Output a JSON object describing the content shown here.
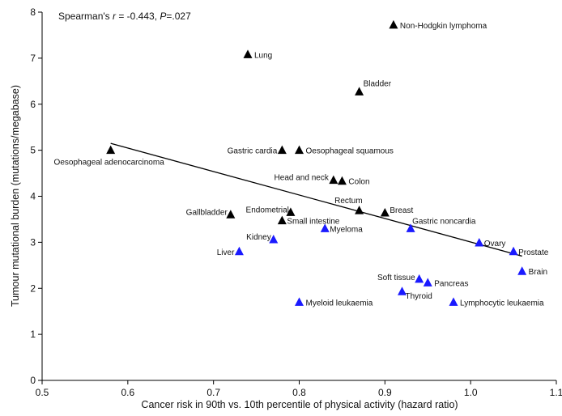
{
  "chart_data": {
    "type": "scatter",
    "title": "",
    "xlabel": "Cancer risk in 90th vs. 10th percentile of physical activity (hazard ratio)",
    "ylabel": "Tumour mutational burden (mutations/megabase)",
    "xlim": [
      0.5,
      1.1
    ],
    "ylim": [
      0,
      8
    ],
    "x_ticks": [
      "0.5",
      "0.6",
      "0.7",
      "0.8",
      "0.9",
      "1.0",
      "1.1"
    ],
    "y_ticks": [
      "0",
      "1",
      "2",
      "3",
      "4",
      "5",
      "6",
      "7",
      "8"
    ],
    "grid": false,
    "annotation": {
      "prefix": "Spearman's ",
      "r_symbol": "r",
      "r_value": " = -0.443, ",
      "p_symbol": "P",
      "p_value": "=.027"
    },
    "colors": {
      "black_series": "#000000",
      "blue_series": "#1a1aff",
      "trend_line": "#000000"
    },
    "trend_line": {
      "x": [
        0.58,
        1.06
      ],
      "y": [
        5.15,
        2.7
      ]
    },
    "points": [
      {
        "label": "Non-Hodgkin lymphoma",
        "x": 0.91,
        "y": 7.72,
        "color": "black"
      },
      {
        "label": "Lung",
        "x": 0.74,
        "y": 7.08,
        "color": "black"
      },
      {
        "label": "Bladder",
        "x": 0.87,
        "y": 6.27,
        "color": "black"
      },
      {
        "label": "Oesophageal adenocarcinoma",
        "x": 0.58,
        "y": 5.0,
        "color": "black"
      },
      {
        "label": "Gastric cardia",
        "x": 0.78,
        "y": 5.0,
        "color": "black"
      },
      {
        "label": "Oesophageal squamous",
        "x": 0.8,
        "y": 5.0,
        "color": "black"
      },
      {
        "label": "Head and neck",
        "x": 0.84,
        "y": 4.35,
        "color": "black"
      },
      {
        "label": "Colon",
        "x": 0.85,
        "y": 4.33,
        "color": "black"
      },
      {
        "label": "Rectum",
        "x": 0.87,
        "y": 3.69,
        "color": "black"
      },
      {
        "label": "Breast",
        "x": 0.9,
        "y": 3.64,
        "color": "black"
      },
      {
        "label": "Gallbladder",
        "x": 0.72,
        "y": 3.6,
        "color": "black"
      },
      {
        "label": "Endometrial",
        "x": 0.79,
        "y": 3.65,
        "color": "black"
      },
      {
        "label": "Small intestine",
        "x": 0.78,
        "y": 3.47,
        "color": "black"
      },
      {
        "label": "Gastric noncardia",
        "x": 0.93,
        "y": 3.3,
        "color": "blue"
      },
      {
        "label": "Myeloma",
        "x": 0.83,
        "y": 3.3,
        "color": "blue"
      },
      {
        "label": "Kidney",
        "x": 0.77,
        "y": 3.06,
        "color": "blue"
      },
      {
        "label": "Ovary",
        "x": 1.01,
        "y": 2.99,
        "color": "blue"
      },
      {
        "label": "Liver",
        "x": 0.73,
        "y": 2.8,
        "color": "blue"
      },
      {
        "label": "Prostate",
        "x": 1.05,
        "y": 2.8,
        "color": "blue"
      },
      {
        "label": "Brain",
        "x": 1.06,
        "y": 2.37,
        "color": "blue"
      },
      {
        "label": "Soft tissue",
        "x": 0.94,
        "y": 2.2,
        "color": "blue"
      },
      {
        "label": "Pancreas",
        "x": 0.95,
        "y": 2.12,
        "color": "blue"
      },
      {
        "label": "Thyroid",
        "x": 0.92,
        "y": 1.93,
        "color": "blue"
      },
      {
        "label": "Myeloid leukaemia",
        "x": 0.8,
        "y": 1.7,
        "color": "blue"
      },
      {
        "label": "Lymphocytic leukaemia",
        "x": 0.98,
        "y": 1.7,
        "color": "blue"
      }
    ]
  }
}
